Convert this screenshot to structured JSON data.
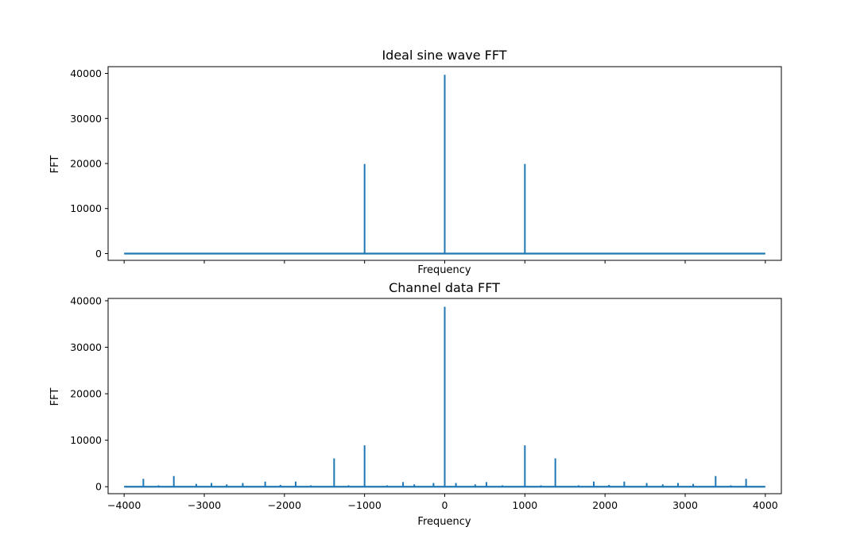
{
  "chart_data": [
    {
      "type": "line",
      "title": "Ideal sine wave FFT",
      "xlabel": "Frequency",
      "ylabel": "FFT",
      "xlim": [
        -4200,
        4200
      ],
      "ylim": [
        -1500,
        41500
      ],
      "xticks": [
        -4000,
        -3000,
        -2000,
        -1000,
        0,
        1000,
        2000,
        3000,
        4000
      ],
      "xtick_labels_visible": false,
      "yticks": [
        0,
        10000,
        20000,
        30000,
        40000
      ],
      "ytick_labels": [
        "0",
        "10000",
        "20000",
        "30000",
        "40000"
      ],
      "color": "#1f77b4",
      "baseline": {
        "x_start": -4000,
        "x_end": 4000,
        "y": 0
      },
      "peaks": [
        {
          "x": -1000,
          "y": 19900
        },
        {
          "x": 0,
          "y": 39700
        },
        {
          "x": 1000,
          "y": 19900
        }
      ]
    },
    {
      "type": "line",
      "title": "Channel data FFT",
      "xlabel": "Frequency",
      "ylabel": "FFT",
      "xlim": [
        -4200,
        4200
      ],
      "ylim": [
        -1500,
        40500
      ],
      "xticks": [
        -4000,
        -3000,
        -2000,
        -1000,
        0,
        1000,
        2000,
        3000,
        4000
      ],
      "xtick_labels": [
        "−4000",
        "−3000",
        "−2000",
        "−1000",
        "0",
        "1000",
        "2000",
        "3000",
        "4000"
      ],
      "yticks": [
        0,
        10000,
        20000,
        30000,
        40000
      ],
      "ytick_labels": [
        "0",
        "10000",
        "20000",
        "30000",
        "40000"
      ],
      "color": "#1f77b4",
      "baseline": {
        "x_start": -4000,
        "x_end": 4000,
        "y": 0
      },
      "peaks": [
        {
          "x": -3760,
          "y": 1700
        },
        {
          "x": -3570,
          "y": 300
        },
        {
          "x": -3380,
          "y": 2300
        },
        {
          "x": -3100,
          "y": 600
        },
        {
          "x": -2910,
          "y": 800
        },
        {
          "x": -2720,
          "y": 500
        },
        {
          "x": -2520,
          "y": 800
        },
        {
          "x": -2240,
          "y": 1100
        },
        {
          "x": -2050,
          "y": 400
        },
        {
          "x": -1860,
          "y": 1100
        },
        {
          "x": -1670,
          "y": 300
        },
        {
          "x": -1380,
          "y": 6100
        },
        {
          "x": -1200,
          "y": 300
        },
        {
          "x": -1000,
          "y": 8900
        },
        {
          "x": -720,
          "y": 300
        },
        {
          "x": -520,
          "y": 1000
        },
        {
          "x": -380,
          "y": 500
        },
        {
          "x": -140,
          "y": 800
        },
        {
          "x": 0,
          "y": 38700
        },
        {
          "x": 140,
          "y": 800
        },
        {
          "x": 380,
          "y": 500
        },
        {
          "x": 520,
          "y": 1000
        },
        {
          "x": 720,
          "y": 300
        },
        {
          "x": 1000,
          "y": 8900
        },
        {
          "x": 1200,
          "y": 300
        },
        {
          "x": 1380,
          "y": 6100
        },
        {
          "x": 1670,
          "y": 300
        },
        {
          "x": 1860,
          "y": 1100
        },
        {
          "x": 2050,
          "y": 400
        },
        {
          "x": 2240,
          "y": 1100
        },
        {
          "x": 2520,
          "y": 800
        },
        {
          "x": 2720,
          "y": 500
        },
        {
          "x": 2910,
          "y": 800
        },
        {
          "x": 3100,
          "y": 600
        },
        {
          "x": 3380,
          "y": 2300
        },
        {
          "x": 3570,
          "y": 300
        },
        {
          "x": 3760,
          "y": 1700
        }
      ]
    }
  ]
}
